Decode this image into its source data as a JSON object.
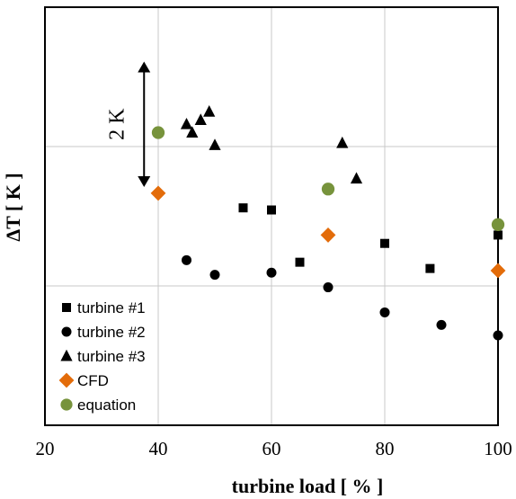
{
  "chart_data": {
    "type": "scatter",
    "xlabel": "turbine load [ % ]",
    "ylabel": "ΔT [ K ]",
    "xlim": [
      20,
      100
    ],
    "ylim": [
      0,
      10
    ],
    "xticks": [
      20,
      40,
      60,
      80,
      100
    ],
    "ytick_labels_shown": false,
    "grid": true,
    "legend_position": "bottom-left",
    "annotation": {
      "text": "2 K",
      "x": 37.5,
      "y_from": 5.7,
      "y_to": 8.7
    },
    "series": [
      {
        "name": "turbine #1",
        "marker": "square",
        "color": "#000000",
        "points": [
          [
            55,
            5.2
          ],
          [
            60,
            5.15
          ],
          [
            65,
            3.9
          ],
          [
            80,
            4.35
          ],
          [
            88,
            3.75
          ],
          [
            100,
            4.55
          ]
        ]
      },
      {
        "name": "turbine #2",
        "marker": "circle",
        "color": "#000000",
        "points": [
          [
            45,
            3.95
          ],
          [
            50,
            3.6
          ],
          [
            60,
            3.65
          ],
          [
            70,
            3.3
          ],
          [
            80,
            2.7
          ],
          [
            90,
            2.4
          ],
          [
            100,
            2.15
          ]
        ]
      },
      {
        "name": "turbine #3",
        "marker": "triangle",
        "color": "#000000",
        "points": [
          [
            45,
            7.2
          ],
          [
            46,
            7.0
          ],
          [
            47.5,
            7.3
          ],
          [
            49,
            7.5
          ],
          [
            50,
            6.7
          ],
          [
            72.5,
            6.75
          ],
          [
            75,
            5.9
          ]
        ]
      },
      {
        "name": "CFD",
        "marker": "diamond",
        "color": "#e36c0a",
        "points": [
          [
            40,
            5.55
          ],
          [
            70,
            4.55
          ],
          [
            100,
            3.7
          ]
        ]
      },
      {
        "name": "equation",
        "marker": "circle",
        "color": "#77933c",
        "points": [
          [
            40,
            7.0
          ],
          [
            70,
            5.65
          ],
          [
            100,
            4.8
          ]
        ]
      }
    ]
  }
}
